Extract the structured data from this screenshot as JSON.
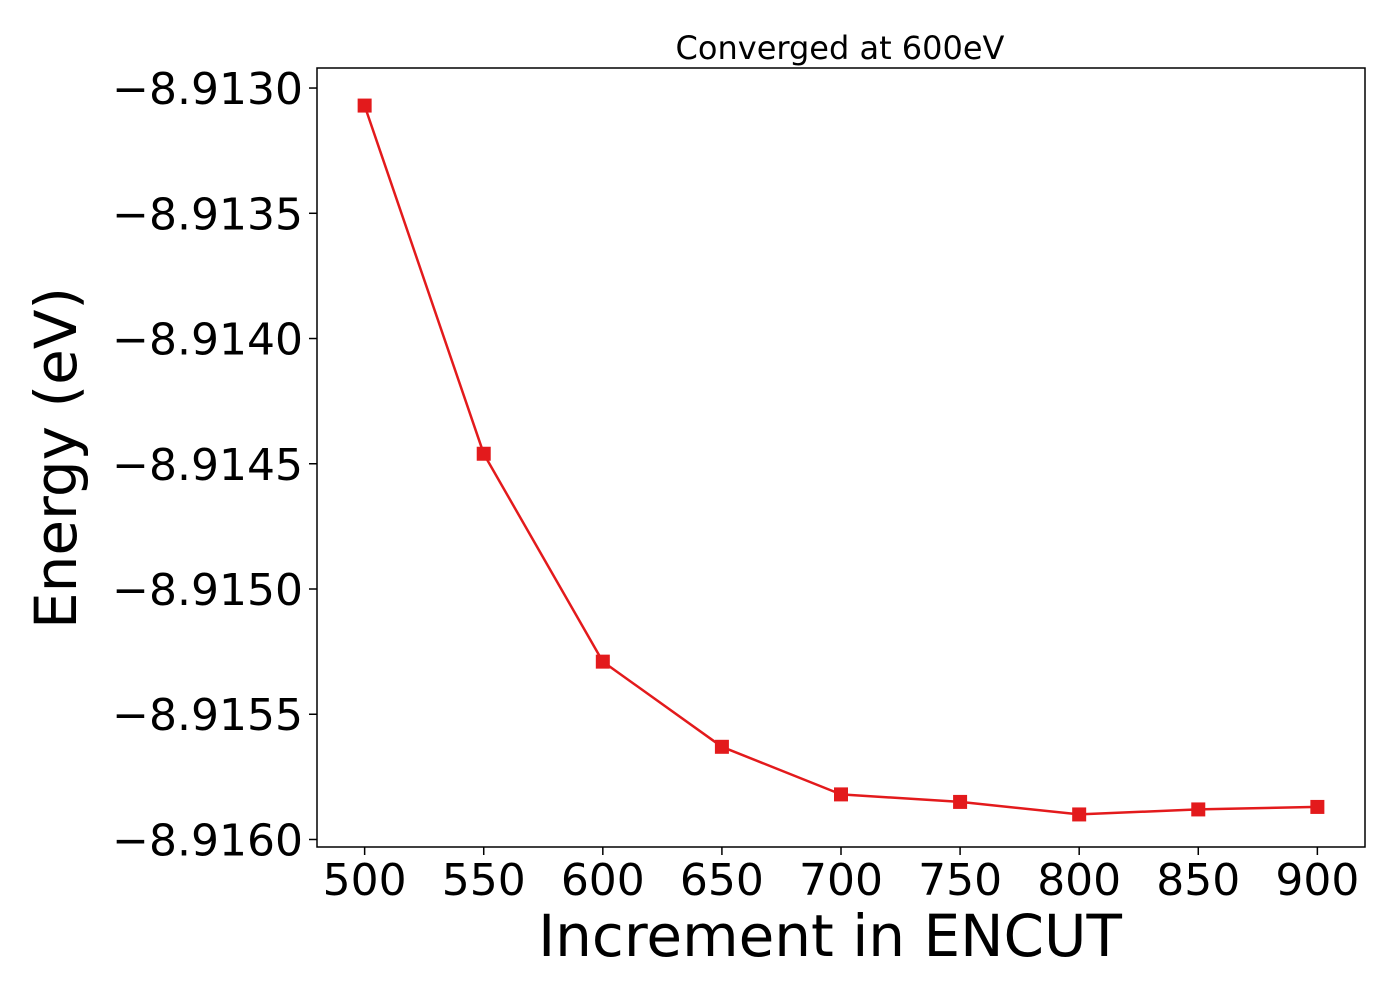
{
  "chart_data": {
    "type": "line",
    "title": "Converged at 600eV",
    "xlabel": "Increment in ENCUT",
    "ylabel": "Energy (eV)",
    "x": [
      500,
      550,
      600,
      650,
      700,
      750,
      800,
      850,
      900
    ],
    "x_tick_labels": [
      "500",
      "550",
      "600",
      "650",
      "700",
      "750",
      "800",
      "850",
      "900"
    ],
    "xlim": [
      480,
      920
    ],
    "y_ticks": [
      -8.913,
      -8.9135,
      -8.914,
      -8.9145,
      -8.915,
      -8.9155,
      -8.916
    ],
    "y_tick_labels": [
      "−8.9130",
      "−8.9135",
      "−8.9140",
      "−8.9145",
      "−8.9150",
      "−8.9155",
      "−8.9160"
    ],
    "ylim": [
      -8.91603,
      -8.91292
    ],
    "series": [
      {
        "name": "Energy",
        "color": "#e31a1c",
        "marker": "square",
        "values": [
          -8.91307,
          -8.91446,
          -8.91529,
          -8.91563,
          -8.91582,
          -8.91585,
          -8.9159,
          -8.91588,
          -8.91587
        ]
      }
    ],
    "grid": false
  }
}
